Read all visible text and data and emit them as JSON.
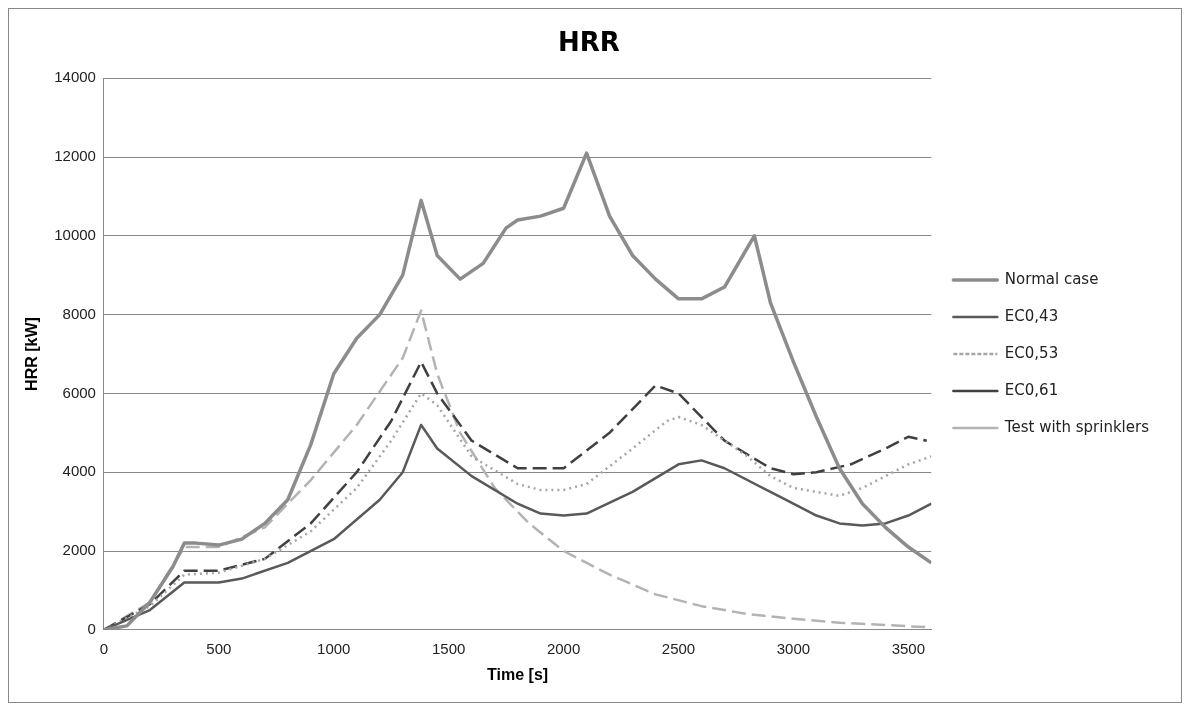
{
  "chart_data": {
    "type": "line",
    "title": "HRR",
    "xlabel": "Time [s]",
    "ylabel": "HRR [kW]",
    "xlim": [
      0,
      3600
    ],
    "xticks": [
      0,
      500,
      1000,
      1500,
      2000,
      2500,
      3000,
      3500
    ],
    "ylim": [
      0,
      14000
    ],
    "yticks": [
      0,
      2000,
      4000,
      6000,
      8000,
      10000,
      12000,
      14000
    ],
    "grid": "y",
    "legend": "right",
    "marker": "none",
    "series": [
      {
        "name": "Normal case",
        "color": "#8c8c8c",
        "line_style": "solid",
        "x": [
          0,
          100,
          200,
          300,
          350,
          400,
          500,
          600,
          700,
          800,
          900,
          1000,
          1100,
          1200,
          1300,
          1380,
          1450,
          1550,
          1650,
          1750,
          1800,
          1900,
          2000,
          2100,
          2200,
          2300,
          2400,
          2500,
          2600,
          2700,
          2780,
          2830,
          2900,
          3000,
          3100,
          3200,
          3300,
          3400,
          3500,
          3600
        ],
        "values": [
          0,
          100,
          700,
          1600,
          2200,
          2200,
          2150,
          2300,
          2700,
          3300,
          4700,
          6500,
          7400,
          8000,
          9000,
          10900,
          9500,
          8900,
          9300,
          10200,
          10400,
          10500,
          10700,
          12100,
          10500,
          9500,
          8900,
          8400,
          8400,
          8700,
          9500,
          10000,
          8300,
          6800,
          5400,
          4100,
          3200,
          2600,
          2100,
          1700
        ]
      },
      {
        "name": "EC0,43",
        "color": "#595959",
        "line_style": "solid",
        "x": [
          0,
          200,
          350,
          500,
          600,
          800,
          1000,
          1200,
          1300,
          1380,
          1450,
          1600,
          1800,
          1900,
          2000,
          2100,
          2300,
          2500,
          2600,
          2700,
          2900,
          3100,
          3200,
          3300,
          3400,
          3500,
          3600
        ],
        "values": [
          0,
          500,
          1200,
          1200,
          1300,
          1700,
          2300,
          3300,
          4000,
          5200,
          4600,
          3900,
          3200,
          2950,
          2900,
          2950,
          3500,
          4200,
          4300,
          4100,
          3500,
          2900,
          2700,
          2650,
          2700,
          2900,
          3200
        ]
      },
      {
        "name": "EC0,53",
        "color": "#a6a6a6",
        "line_style": "dotted",
        "x": [
          0,
          200,
          350,
          500,
          700,
          900,
          1100,
          1250,
          1380,
          1450,
          1600,
          1800,
          1900,
          2000,
          2100,
          2300,
          2450,
          2500,
          2600,
          2800,
          2900,
          3000,
          3200,
          3300,
          3400,
          3500,
          3600
        ],
        "values": [
          0,
          600,
          1400,
          1450,
          1800,
          2500,
          3600,
          4800,
          6000,
          5700,
          4400,
          3700,
          3550,
          3550,
          3700,
          4600,
          5300,
          5400,
          5200,
          4400,
          3900,
          3600,
          3400,
          3600,
          3900,
          4200,
          4400
        ]
      },
      {
        "name": "EC0,61",
        "color": "#404040",
        "line_style": "dashed",
        "x": [
          0,
          200,
          350,
          500,
          700,
          900,
          1100,
          1250,
          1380,
          1450,
          1600,
          1800,
          2000,
          2200,
          2400,
          2500,
          2700,
          2900,
          3000,
          3100,
          3250,
          3400,
          3500,
          3580
        ],
        "values": [
          0,
          650,
          1500,
          1500,
          1800,
          2700,
          4000,
          5300,
          6800,
          6000,
          4800,
          4100,
          4100,
          5000,
          6200,
          6000,
          4800,
          4100,
          3950,
          4000,
          4200,
          4600,
          4900,
          4800
        ]
      },
      {
        "name": "Test with sprinklers",
        "color": "#b3b3b3",
        "line_style": "dashed",
        "x": [
          0,
          200,
          350,
          500,
          700,
          900,
          1100,
          1300,
          1380,
          1450,
          1550,
          1700,
          1850,
          2000,
          2200,
          2400,
          2600,
          2800,
          3000,
          3200,
          3400,
          3600
        ],
        "values": [
          0,
          700,
          2100,
          2100,
          2600,
          3800,
          5200,
          6900,
          8100,
          6500,
          5000,
          3600,
          2700,
          2000,
          1400,
          900,
          600,
          400,
          280,
          180,
          120,
          60
        ]
      }
    ]
  }
}
